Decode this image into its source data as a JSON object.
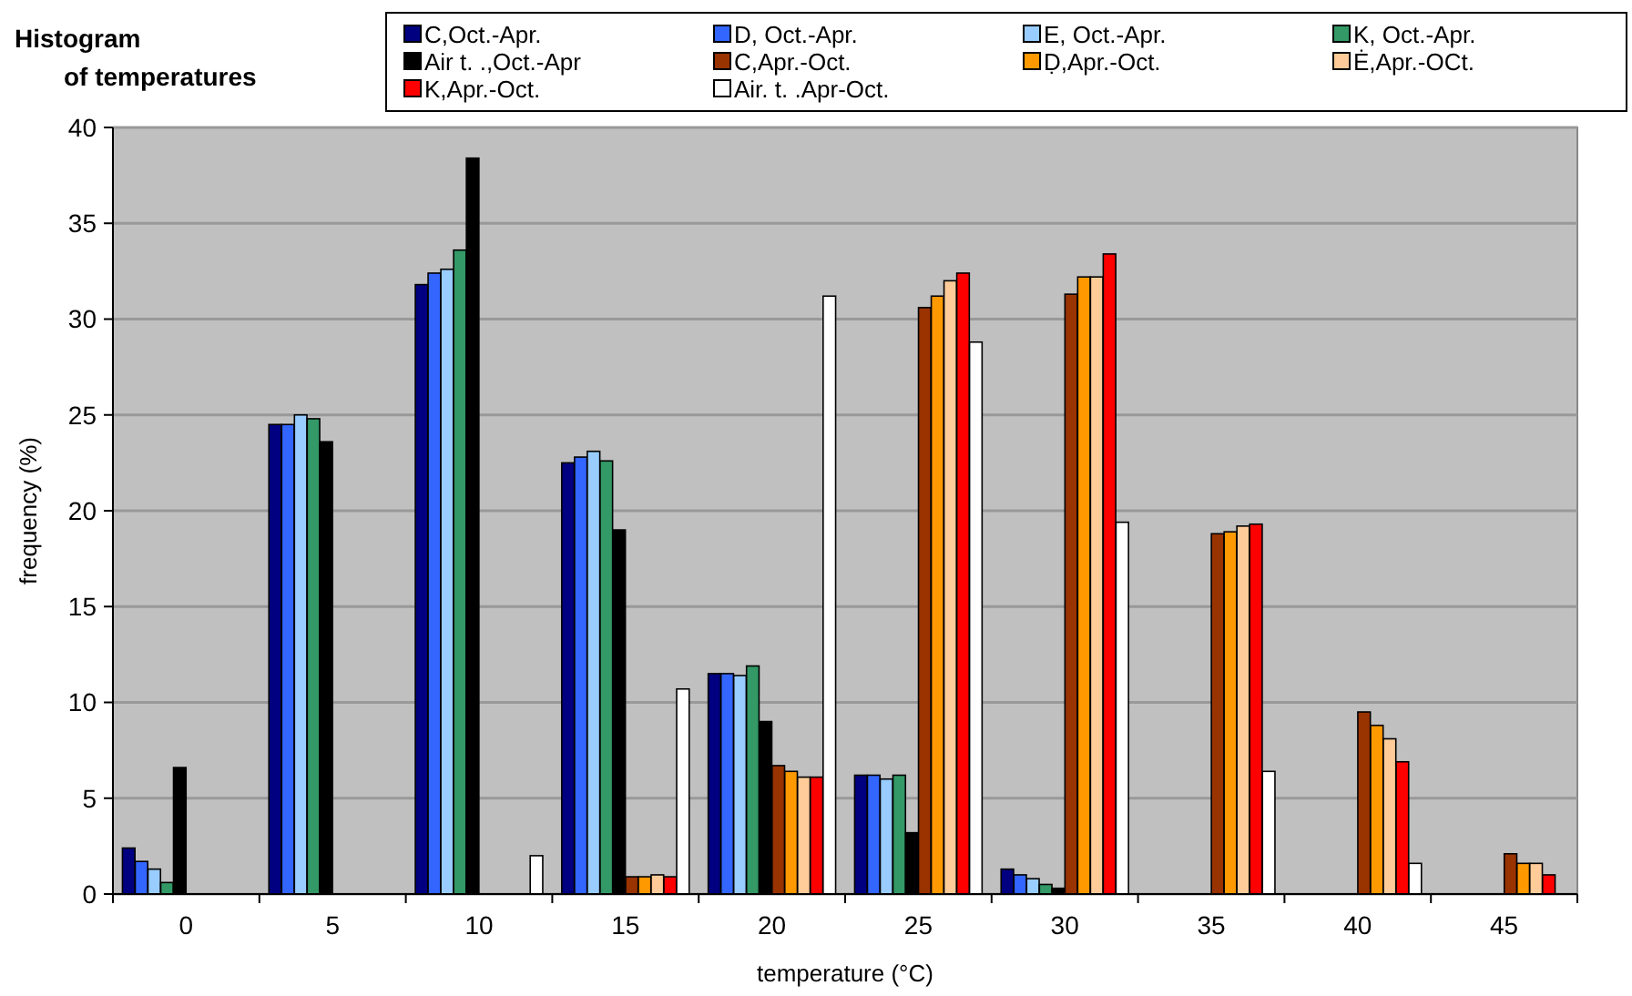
{
  "chart_data": {
    "type": "bar",
    "title": "Histogram of temperatures",
    "xlabel": "temperature (°C)",
    "ylabel": "frequency (%)",
    "categories": [
      "0",
      "5",
      "10",
      "15",
      "20",
      "25",
      "30",
      "35",
      "40",
      "45"
    ],
    "series": [
      {
        "name": "C,Oct.-Apr.",
        "color": "#000080",
        "values": [
          2.4,
          24.5,
          31.8,
          22.5,
          11.5,
          6.2,
          1.3,
          null,
          null,
          null
        ]
      },
      {
        "name": "D, Oct.-Apr.",
        "color": "#3366ff",
        "values": [
          1.7,
          24.5,
          32.4,
          22.8,
          11.5,
          6.2,
          1.0,
          null,
          null,
          null
        ]
      },
      {
        "name": "E, Oct.-Apr.",
        "color": "#99ccff",
        "values": [
          1.3,
          25.0,
          32.6,
          23.1,
          11.4,
          6.0,
          0.8,
          null,
          null,
          null
        ]
      },
      {
        "name": "K, Oct.-Apr.",
        "color": "#339966",
        "values": [
          0.6,
          24.8,
          33.6,
          22.6,
          11.9,
          6.2,
          0.5,
          null,
          null,
          null
        ]
      },
      {
        "name": "Air t. .,Oct.-Apr",
        "color": "#000000",
        "values": [
          6.6,
          23.6,
          38.4,
          19.0,
          9.0,
          3.2,
          0.3,
          null,
          null,
          null
        ]
      },
      {
        "name": "C,Apr.-Oct.",
        "color": "#993300",
        "values": [
          null,
          null,
          null,
          0.9,
          6.7,
          30.6,
          31.3,
          18.8,
          9.5,
          2.1
        ]
      },
      {
        "name": "Ḍ,Apr.-Oct.",
        "color": "#ff9900",
        "values": [
          null,
          null,
          null,
          0.9,
          6.4,
          31.2,
          32.2,
          18.9,
          8.8,
          1.6
        ]
      },
      {
        "name": "Ė,Apr.-OCt.",
        "color": "#ffcc99",
        "values": [
          null,
          null,
          null,
          1.0,
          6.1,
          32.0,
          32.2,
          19.2,
          8.1,
          1.6
        ]
      },
      {
        "name": "K,Apr.-Oct.",
        "color": "#ff0000",
        "values": [
          null,
          null,
          null,
          0.9,
          6.1,
          32.4,
          33.4,
          19.3,
          6.9,
          1.0
        ]
      },
      {
        "name": "Air. t. .Apr-Oct.",
        "color": "#ffffff",
        "values": [
          null,
          null,
          2.0,
          10.7,
          31.2,
          28.8,
          19.4,
          6.4,
          1.6,
          null
        ]
      }
    ],
    "ylim": [
      0,
      40
    ],
    "yticks": [
      0,
      5,
      10,
      15,
      20,
      25,
      30,
      35,
      40
    ],
    "grid": "y",
    "legend": "top"
  }
}
